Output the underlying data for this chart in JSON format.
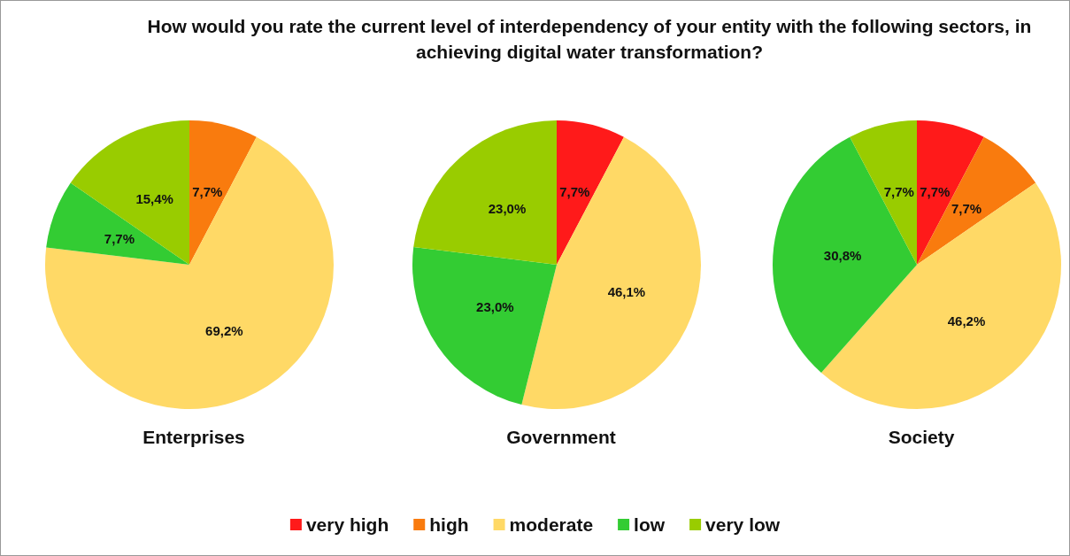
{
  "chart_data": {
    "type": "pie",
    "title": "How would you rate the current level of interdependency of your entity with the following sectors, in achieving digital water transformation?",
    "categories": [
      "very high",
      "high",
      "moderate",
      "low",
      "very low"
    ],
    "colors": [
      "#ff1a1a",
      "#f97b0e",
      "#ffd966",
      "#33cc33",
      "#99cc00"
    ],
    "legend": "bottom",
    "series": [
      {
        "name": "Enterprises",
        "values": [
          null,
          7.7,
          69.2,
          7.7,
          15.4
        ],
        "value_labels": [
          null,
          "7,7%",
          "69,2%",
          "7,7%",
          "15,4%"
        ]
      },
      {
        "name": "Government",
        "values": [
          7.7,
          null,
          46.1,
          23.0,
          23.0
        ],
        "value_labels": [
          "7,7%",
          null,
          "46,1%",
          "23,0%",
          "23,0%"
        ]
      },
      {
        "name": "Society",
        "values": [
          7.7,
          7.7,
          46.2,
          30.8,
          7.7
        ],
        "value_labels": [
          "7,7%",
          "7,7%",
          "46,2%",
          "30,8%",
          "7,7%"
        ]
      }
    ]
  }
}
